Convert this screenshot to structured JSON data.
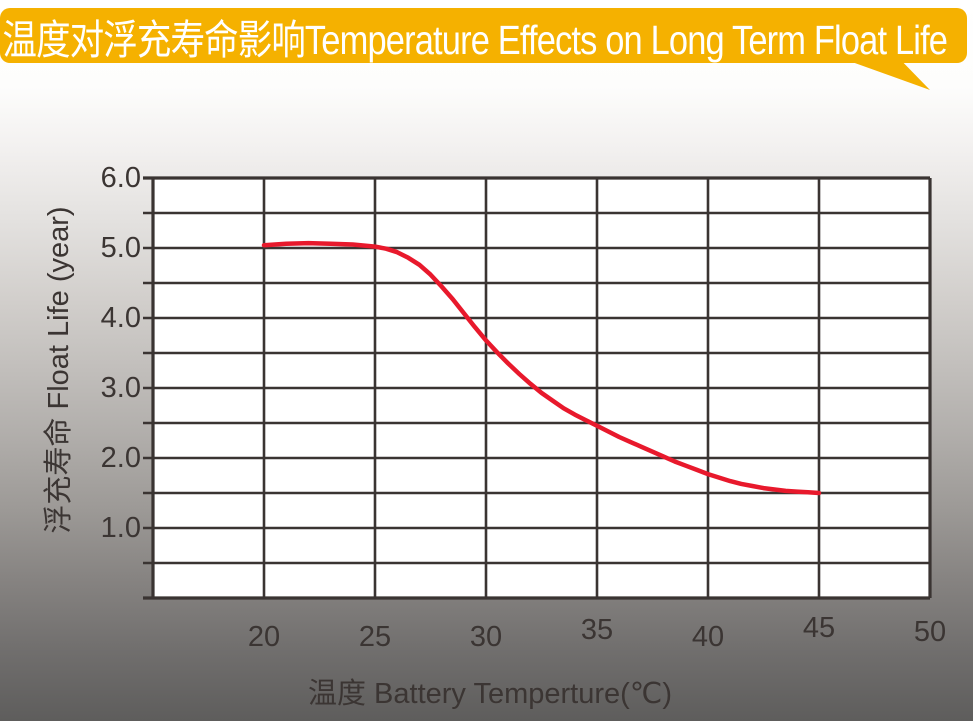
{
  "header": {
    "title": "温度对浮充寿命影响Temperature Effects on Long Term Float Life"
  },
  "colors": {
    "banner": "#F5B100",
    "banner_text": "#FFFFFF",
    "grid": "#3A3432",
    "plot_background": "#FFFFFF",
    "axis_text": "#3B3533",
    "curve": "#E8192C",
    "page_gradient_top": "#FFFFFF",
    "page_gradient_bottom": "#5D5C5B"
  },
  "chart_data": {
    "type": "line",
    "title": "温度对浮充寿命影响Temperature Effects on Long Term Float Life",
    "xlabel": "温度  Battery  Temperture(℃)",
    "ylabel": "浮充寿命  Float Life (year)",
    "xlim": [
      15,
      50
    ],
    "ylim": [
      0,
      6
    ],
    "x_ticks": [
      20,
      25,
      30,
      35,
      40,
      45,
      50
    ],
    "y_tick_labels": [
      "6.0",
      "5.0",
      "4.0",
      "3.0",
      "2.0",
      "1.0"
    ],
    "grid": "on",
    "grid_x_step": 5,
    "grid_y_step": 0.5,
    "legend": "none",
    "series": [
      {
        "name": "float-life-vs-temperature",
        "color": "#E8192C",
        "points": [
          [
            20,
            5.04
          ],
          [
            21,
            5.06
          ],
          [
            22,
            5.07
          ],
          [
            23,
            5.06
          ],
          [
            24,
            5.05
          ],
          [
            25,
            5.02
          ],
          [
            25.5,
            4.99
          ],
          [
            26,
            4.94
          ],
          [
            26.5,
            4.86
          ],
          [
            27,
            4.76
          ],
          [
            27.5,
            4.62
          ],
          [
            28,
            4.45
          ],
          [
            28.5,
            4.27
          ],
          [
            29,
            4.07
          ],
          [
            29.5,
            3.87
          ],
          [
            30,
            3.68
          ],
          [
            30.5,
            3.51
          ],
          [
            31,
            3.35
          ],
          [
            31.5,
            3.2
          ],
          [
            32,
            3.06
          ],
          [
            32.5,
            2.93
          ],
          [
            33,
            2.82
          ],
          [
            33.5,
            2.71
          ],
          [
            34,
            2.62
          ],
          [
            34.5,
            2.54
          ],
          [
            35,
            2.46
          ],
          [
            35.5,
            2.38
          ],
          [
            36,
            2.3
          ],
          [
            36.5,
            2.23
          ],
          [
            37,
            2.16
          ],
          [
            37.5,
            2.09
          ],
          [
            38,
            2.02
          ],
          [
            38.5,
            1.95
          ],
          [
            39,
            1.89
          ],
          [
            39.5,
            1.83
          ],
          [
            40,
            1.77
          ],
          [
            40.5,
            1.72
          ],
          [
            41,
            1.67
          ],
          [
            41.5,
            1.63
          ],
          [
            42,
            1.6
          ],
          [
            42.5,
            1.57
          ],
          [
            43,
            1.55
          ],
          [
            43.5,
            1.53
          ],
          [
            44,
            1.52
          ],
          [
            44.5,
            1.51
          ],
          [
            45,
            1.5
          ]
        ]
      }
    ]
  }
}
